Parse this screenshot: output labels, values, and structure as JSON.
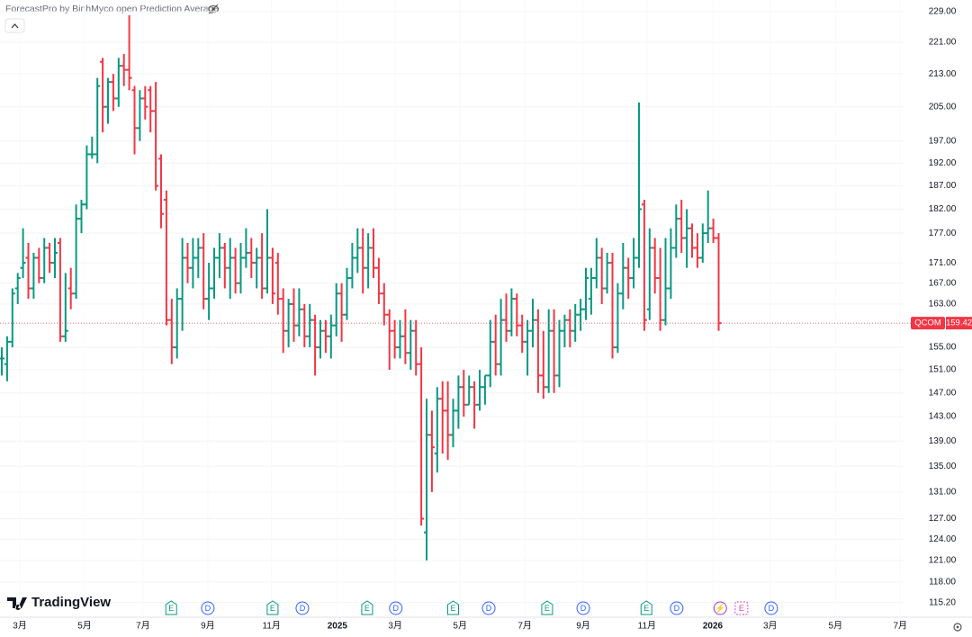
{
  "chart_data": {
    "type": "ohlc",
    "title": "ForecastPro by BinhMyco open Prediction Average",
    "brand": "TradingView",
    "symbol": "QCOM",
    "up_color": "#089981",
    "down_color": "#f23645",
    "log_scale": true,
    "grid": true,
    "ylim": [
      113.5,
      232.1
    ],
    "yticks": [
      {
        "value": 229,
        "label": "229.00"
      },
      {
        "value": 221,
        "label": "221.00"
      },
      {
        "value": 213,
        "label": "213.00"
      },
      {
        "value": 205,
        "label": "205.00"
      },
      {
        "value": 197,
        "label": "197.00"
      },
      {
        "value": 192,
        "label": "192.00"
      },
      {
        "value": 187,
        "label": "187.00"
      },
      {
        "value": 182,
        "label": "182.00"
      },
      {
        "value": 177,
        "label": "177.00"
      },
      {
        "value": 171,
        "label": "171.00"
      },
      {
        "value": 167,
        "label": "167.00"
      },
      {
        "value": 163,
        "label": "163.00"
      },
      {
        "value": 155,
        "label": "155.00"
      },
      {
        "value": 151,
        "label": "151.00"
      },
      {
        "value": 147,
        "label": "147.00"
      },
      {
        "value": 143,
        "label": "143.00"
      },
      {
        "value": 139,
        "label": "139.00"
      },
      {
        "value": 135,
        "label": "135.00"
      },
      {
        "value": 131,
        "label": "131.00"
      },
      {
        "value": 127,
        "label": "127.00"
      },
      {
        "value": 124,
        "label": "124.00"
      },
      {
        "value": 121,
        "label": "121.00"
      },
      {
        "value": 118,
        "label": "118.00"
      },
      {
        "value": 115.2,
        "label": "115.20"
      }
    ],
    "xlim": [
      -0.34,
      170
    ],
    "xticks": [
      {
        "value": 3.4,
        "label": "3月"
      },
      {
        "value": 15.6,
        "label": "5月"
      },
      {
        "value": 26.6,
        "label": "7月"
      },
      {
        "value": 38.8,
        "label": "9月"
      },
      {
        "value": 50.8,
        "label": "11月"
      },
      {
        "value": 63.2,
        "label": "2025"
      },
      {
        "value": 74.1,
        "label": "3月"
      },
      {
        "value": 86.3,
        "label": "5月"
      },
      {
        "value": 98.5,
        "label": "7月"
      },
      {
        "value": 109.5,
        "label": "9月"
      },
      {
        "value": 121.5,
        "label": "11月"
      },
      {
        "value": 133.9,
        "label": "2026"
      },
      {
        "value": 144.7,
        "label": "3月"
      },
      {
        "value": 157,
        "label": "5月"
      },
      {
        "value": 169.2,
        "label": "7月"
      }
    ],
    "events": [
      {
        "label": "E",
        "bar": 31.9
      },
      {
        "label": "D",
        "bar": 38.8
      },
      {
        "label": "E",
        "bar": 51
      },
      {
        "label": "D",
        "bar": 56.6
      },
      {
        "label": "E",
        "bar": 68.8
      },
      {
        "label": "D",
        "bar": 74.2
      },
      {
        "label": "E",
        "bar": 85
      },
      {
        "label": "D",
        "bar": 91.7
      },
      {
        "label": "E",
        "bar": 102.7
      },
      {
        "label": "D",
        "bar": 109.5
      },
      {
        "label": "E",
        "bar": 121.4
      },
      {
        "label": "D",
        "bar": 127.1
      },
      {
        "label": "⚡",
        "bar": 135.3
      },
      {
        "label": "E",
        "bar": 139.3
      },
      {
        "label": "D",
        "bar": 144.9
      }
    ],
    "ohlc": [
      [
        153,
        155,
        150,
        153
      ],
      [
        152,
        157,
        149,
        156
      ],
      [
        156,
        166,
        155,
        165
      ],
      [
        166,
        169,
        163,
        168
      ],
      [
        170,
        178,
        168,
        171
      ],
      [
        172,
        175,
        164,
        166
      ],
      [
        166,
        173,
        164,
        172
      ],
      [
        172,
        174,
        167,
        168
      ],
      [
        168,
        176,
        167,
        174
      ],
      [
        174,
        175,
        169,
        171
      ],
      [
        171,
        176,
        168,
        173
      ],
      [
        175,
        176,
        156,
        157
      ],
      [
        157,
        169,
        156,
        158
      ],
      [
        166,
        170,
        162,
        165
      ],
      [
        165,
        183,
        164,
        180
      ],
      [
        180,
        184,
        177,
        183
      ],
      [
        183,
        196,
        182,
        194
      ],
      [
        194,
        198,
        193,
        194
      ],
      [
        194,
        212,
        192,
        210
      ],
      [
        216,
        217,
        199,
        205
      ],
      [
        205,
        212,
        201,
        211
      ],
      [
        211,
        213,
        204,
        207
      ],
      [
        207,
        217,
        205,
        215
      ],
      [
        215,
        218,
        210,
        214
      ],
      [
        214,
        228,
        209,
        212
      ],
      [
        209,
        210,
        194,
        200
      ],
      [
        200,
        209,
        197,
        207
      ],
      [
        207,
        210,
        202,
        205
      ],
      [
        209,
        210,
        199,
        204
      ],
      [
        204,
        211,
        186,
        187
      ],
      [
        193,
        194,
        178,
        181
      ],
      [
        184,
        186,
        159,
        160
      ],
      [
        160,
        164,
        152,
        155
      ],
      [
        155,
        166,
        153,
        164
      ],
      [
        164,
        176,
        158,
        172
      ],
      [
        172,
        175,
        167,
        170
      ],
      [
        170,
        176,
        166,
        172
      ],
      [
        172,
        176,
        168,
        174
      ],
      [
        174,
        177,
        162,
        164
      ],
      [
        164,
        171,
        160,
        166
      ],
      [
        166,
        174,
        164,
        172
      ],
      [
        172,
        177,
        168,
        174
      ],
      [
        174,
        175,
        166,
        170
      ],
      [
        170,
        176,
        164,
        172
      ],
      [
        172,
        174,
        165,
        167
      ],
      [
        167,
        175,
        165,
        172
      ],
      [
        172,
        178,
        170,
        173
      ],
      [
        173,
        176,
        168,
        171
      ],
      [
        171,
        174,
        166,
        172
      ],
      [
        172,
        177,
        164,
        166
      ],
      [
        166,
        182,
        165,
        172
      ],
      [
        172,
        174,
        163,
        165
      ],
      [
        171,
        173,
        161,
        164
      ],
      [
        164,
        166,
        154,
        158
      ],
      [
        158,
        164,
        155,
        163
      ],
      [
        163,
        166,
        156,
        159
      ],
      [
        159,
        166,
        157,
        162
      ],
      [
        162,
        163,
        155,
        157
      ],
      [
        157,
        163,
        155,
        160
      ],
      [
        160,
        161,
        150,
        155
      ],
      [
        155,
        160,
        153,
        158
      ],
      [
        158,
        160,
        154,
        157
      ],
      [
        157,
        161,
        153,
        159
      ],
      [
        159,
        167,
        157,
        165
      ],
      [
        165,
        167,
        156,
        161
      ],
      [
        161,
        170,
        160,
        168
      ],
      [
        168,
        175,
        166,
        172
      ],
      [
        172,
        178,
        169,
        174
      ],
      [
        174,
        178,
        165,
        170
      ],
      [
        170,
        177,
        166,
        174
      ],
      [
        174,
        178,
        168,
        170
      ],
      [
        170,
        172,
        163,
        165
      ],
      [
        165,
        167,
        159,
        161
      ],
      [
        161,
        162,
        151,
        158
      ],
      [
        158,
        160,
        153,
        155
      ],
      [
        155,
        160,
        153,
        157
      ],
      [
        157,
        162,
        152,
        154
      ],
      [
        154,
        160,
        151,
        158
      ],
      [
        158,
        160,
        150,
        152
      ],
      [
        152,
        155,
        126,
        127
      ],
      [
        125,
        146,
        121,
        140
      ],
      [
        140,
        144,
        131,
        138
      ],
      [
        137,
        148,
        134,
        146
      ],
      [
        146,
        149,
        137,
        144
      ],
      [
        144,
        149,
        136,
        140
      ],
      [
        140,
        146,
        138,
        144
      ],
      [
        144,
        150,
        141,
        148
      ],
      [
        148,
        151,
        143,
        145
      ],
      [
        145,
        150,
        145,
        148
      ],
      [
        148,
        149,
        141,
        145
      ],
      [
        145,
        151,
        144,
        148
      ],
      [
        148,
        150,
        145,
        150
      ],
      [
        150,
        160,
        148,
        156
      ],
      [
        156,
        161,
        150,
        152
      ],
      [
        152,
        164,
        150,
        160
      ],
      [
        160,
        165,
        156,
        158
      ],
      [
        158,
        166,
        157,
        164
      ],
      [
        164,
        165,
        157,
        159
      ],
      [
        159,
        161,
        154,
        156
      ],
      [
        156,
        160,
        150,
        158
      ],
      [
        158,
        164,
        155,
        160
      ],
      [
        160,
        162,
        147,
        150
      ],
      [
        150,
        158,
        146,
        148
      ],
      [
        148,
        162,
        147,
        158
      ],
      [
        158,
        162,
        147,
        150
      ],
      [
        150,
        160,
        148,
        158
      ],
      [
        158,
        161,
        155,
        160
      ],
      [
        160,
        162,
        155,
        158
      ],
      [
        158,
        163,
        156,
        161
      ],
      [
        161,
        164,
        158,
        162
      ],
      [
        162,
        170,
        160,
        168
      ],
      [
        164,
        170,
        161,
        168
      ],
      [
        168,
        176,
        166,
        172
      ],
      [
        172,
        174,
        163,
        166
      ],
      [
        166,
        173,
        165,
        171
      ],
      [
        171,
        173,
        153,
        155
      ],
      [
        155,
        167,
        154,
        165
      ],
      [
        165,
        175,
        162,
        170
      ],
      [
        170,
        172,
        164,
        168
      ],
      [
        168,
        176,
        166,
        172
      ],
      [
        172,
        206,
        170,
        182
      ],
      [
        183,
        184,
        158,
        160
      ],
      [
        162,
        178,
        160,
        174
      ],
      [
        174,
        176,
        165,
        168
      ],
      [
        168,
        174,
        158,
        160
      ],
      [
        160,
        176,
        159,
        166
      ],
      [
        166,
        178,
        164,
        174
      ],
      [
        174,
        183,
        172,
        180
      ],
      [
        180,
        184,
        173,
        176
      ],
      [
        176,
        182,
        170,
        178
      ],
      [
        178,
        179,
        172,
        174
      ],
      [
        174,
        177,
        170,
        172
      ],
      [
        172,
        179,
        171,
        177
      ],
      [
        177,
        186,
        175,
        178
      ],
      [
        178,
        180,
        175,
        176
      ],
      [
        176,
        177,
        158,
        159.42
      ]
    ]
  }
}
